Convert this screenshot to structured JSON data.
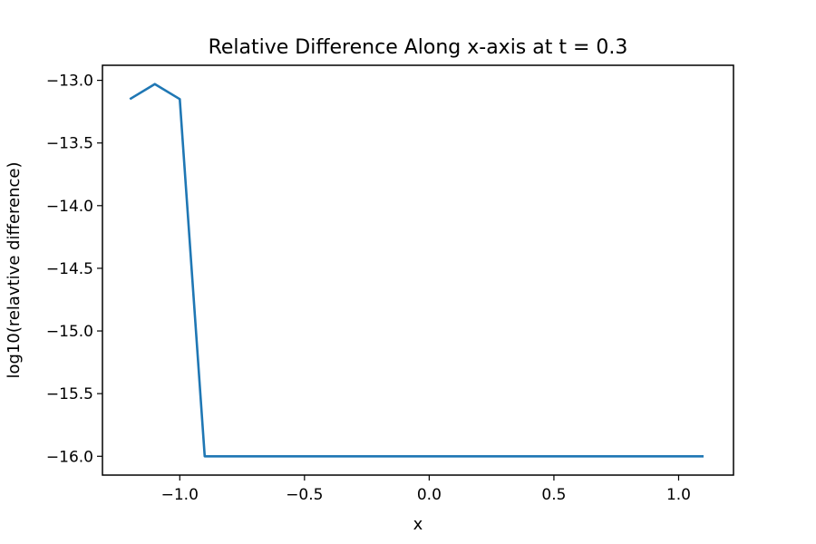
{
  "chart_data": {
    "type": "line",
    "title": "Relative Difference Along x-axis at t = 0.3",
    "xlabel": "x",
    "ylabel": "log10(relavtive difference)",
    "xlim": [
      -1.31,
      1.22
    ],
    "ylim": [
      -16.15,
      -12.88
    ],
    "xticks": [
      -1.0,
      -0.5,
      0.0,
      0.5,
      1.0
    ],
    "xtick_labels": [
      "−1.0",
      "−0.5",
      "0.0",
      "0.5",
      "1.0"
    ],
    "yticks": [
      -13.0,
      -13.5,
      -14.0,
      -14.5,
      -15.0,
      -15.5,
      -16.0
    ],
    "ytick_labels": [
      "−13.0",
      "−13.5",
      "−14.0",
      "−14.5",
      "−15.0",
      "−15.5",
      "−16.0"
    ],
    "grid": false,
    "series": [
      {
        "color": "#1f77b4",
        "x": [
          -1.2,
          -1.1,
          -1.0,
          -0.9,
          -0.8,
          -0.7,
          -0.6,
          -0.5,
          -0.4,
          -0.3,
          -0.2,
          -0.1,
          0.0,
          0.1,
          0.2,
          0.3,
          0.4,
          0.5,
          0.6,
          0.7,
          0.8,
          0.9,
          1.0,
          1.1
        ],
        "y": [
          -13.15,
          -13.03,
          -13.15,
          -16.0,
          -16.0,
          -16.0,
          -16.0,
          -16.0,
          -16.0,
          -16.0,
          -16.0,
          -16.0,
          -16.0,
          -16.0,
          -16.0,
          -16.0,
          -16.0,
          -16.0,
          -16.0,
          -16.0,
          -16.0,
          -16.0,
          -16.0,
          -16.0
        ]
      }
    ]
  }
}
